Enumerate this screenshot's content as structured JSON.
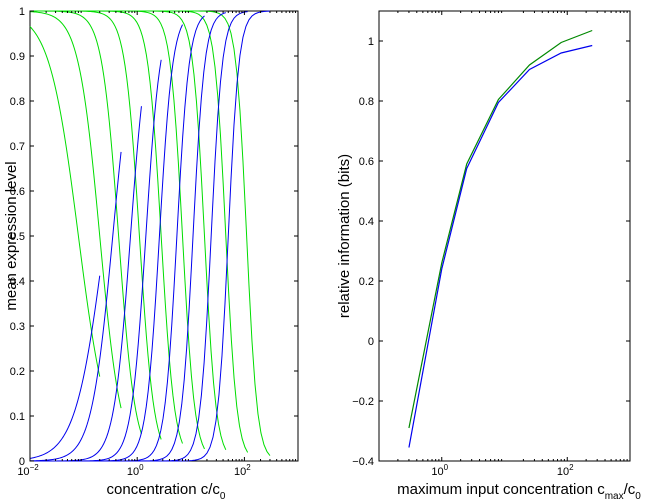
{
  "chart_data": [
    {
      "type": "line",
      "xlabel_main": "concentration c/c",
      "xlabel_sub": "0",
      "ylabel": "mean expression level",
      "xscale": "log",
      "xlim": [
        0.01,
        1000
      ],
      "ylim": [
        0,
        1
      ],
      "grid": false,
      "x_ticks": [
        {
          "value": 0.01,
          "base": "10",
          "exp": "−2"
        },
        {
          "value": 1,
          "base": "10",
          "exp": "0"
        },
        {
          "value": 100,
          "base": "10",
          "exp": "2"
        }
      ],
      "y_ticks": [
        {
          "value": 0,
          "label": "0"
        },
        {
          "value": 0.1,
          "label": "0.1"
        },
        {
          "value": 0.2,
          "label": "0.2"
        },
        {
          "value": 0.3,
          "label": "0.3"
        },
        {
          "value": 0.4,
          "label": "0.4"
        },
        {
          "value": 0.5,
          "label": "0.5"
        },
        {
          "value": 0.6,
          "label": "0.6"
        },
        {
          "value": 0.7,
          "label": "0.7"
        },
        {
          "value": 0.8,
          "label": "0.8"
        },
        {
          "value": 0.9,
          "label": "0.9"
        },
        {
          "value": 1,
          "label": "1"
        }
      ],
      "series_color_green": "#00dd00",
      "series_color_blue": "#0000ee",
      "green_curves": [
        {
          "k": 0.08,
          "n": 1.6,
          "xmax": 0.2
        },
        {
          "k": 0.2,
          "n": 2.2,
          "xmax": 0.5
        },
        {
          "k": 0.45,
          "n": 2.8,
          "xmax": 1.2
        },
        {
          "k": 1.1,
          "n": 3.2,
          "xmax": 2.8
        },
        {
          "k": 2.8,
          "n": 3.5,
          "xmax": 7
        },
        {
          "k": 7,
          "n": 3.8,
          "xmax": 18
        },
        {
          "k": 18,
          "n": 4.0,
          "xmax": 45
        },
        {
          "k": 45,
          "n": 4.2,
          "xmax": 115
        },
        {
          "k": 110,
          "n": 4.4,
          "xmax": 300
        }
      ],
      "blue_curves": [
        {
          "k": 0.25,
          "n": 1.6,
          "xmax": 0.2
        },
        {
          "k": 0.35,
          "n": 2.2,
          "xmax": 0.5
        },
        {
          "k": 0.75,
          "n": 2.8,
          "xmax": 1.2
        },
        {
          "k": 1.45,
          "n": 3.2,
          "xmax": 2.8
        },
        {
          "k": 2.6,
          "n": 3.5,
          "xmax": 7
        },
        {
          "k": 5.5,
          "n": 3.8,
          "xmax": 18
        },
        {
          "k": 11,
          "n": 4.0,
          "xmax": 45
        },
        {
          "k": 24,
          "n": 4.2,
          "xmax": 115
        },
        {
          "k": 50,
          "n": 4.4,
          "xmax": 300
        }
      ]
    },
    {
      "type": "line",
      "xlabel_main": "maximum input concentration c",
      "xlabel_sub1": "max",
      "xlabel_sep": "/c",
      "xlabel_sub2": "0",
      "ylabel": "relative information (bits)",
      "xscale": "log",
      "xlim": [
        0.1,
        1000
      ],
      "ylim": [
        -0.4,
        1.1
      ],
      "grid": false,
      "x_ticks": [
        {
          "value": 1,
          "base": "10",
          "exp": "0"
        },
        {
          "value": 100,
          "base": "10",
          "exp": "2"
        }
      ],
      "y_ticks": [
        {
          "value": -0.4,
          "label": "−0.4"
        },
        {
          "value": -0.2,
          "label": "−0.2"
        },
        {
          "value": 0,
          "label": "0"
        },
        {
          "value": 0.2,
          "label": "0.2"
        },
        {
          "value": 0.4,
          "label": "0.4"
        },
        {
          "value": 0.6,
          "label": "0.6"
        },
        {
          "value": 0.8,
          "label": "0.8"
        },
        {
          "value": 1,
          "label": "1"
        }
      ],
      "series": [
        {
          "color": "#008800",
          "x": [
            0.3,
            1,
            2.5,
            8,
            25,
            80,
            250
          ],
          "y": [
            -0.29,
            0.26,
            0.59,
            0.805,
            0.92,
            0.995,
            1.035
          ]
        },
        {
          "color": "#0000ee",
          "x": [
            0.3,
            1,
            2.5,
            8,
            25,
            80,
            250
          ],
          "y": [
            -0.355,
            0.24,
            0.575,
            0.795,
            0.905,
            0.96,
            0.985
          ]
        }
      ]
    }
  ]
}
